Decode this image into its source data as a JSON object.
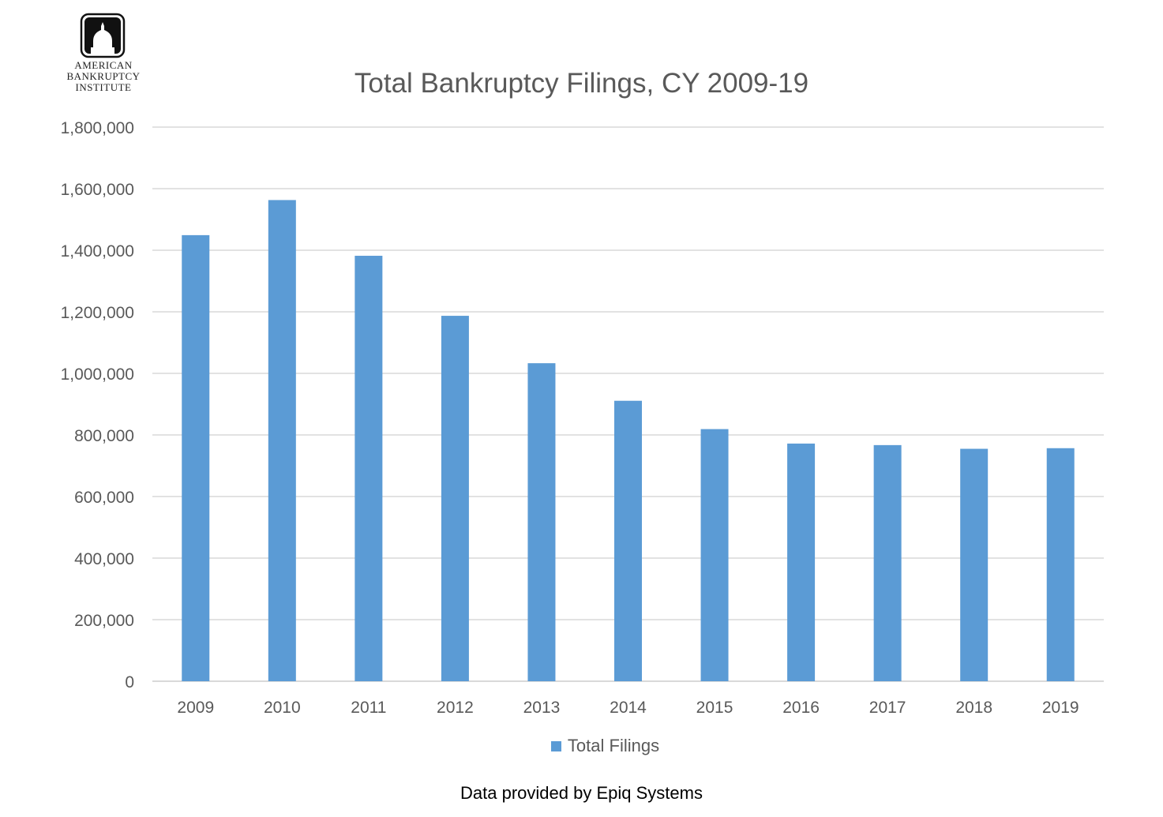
{
  "logo": {
    "lines": [
      "AMERICAN",
      "BANKRUPTCY",
      "INSTITUTE"
    ]
  },
  "footer": {
    "note": "Data provided by Epiq Systems"
  },
  "colors": {
    "bar": "#5B9BD5",
    "grid": "#D9D9D9",
    "text": "#595959"
  },
  "chart_data": {
    "type": "bar",
    "title": "Total Bankruptcy Filings, CY 2009-19",
    "xlabel": "",
    "ylabel": "",
    "categories": [
      "2009",
      "2010",
      "2011",
      "2012",
      "2013",
      "2014",
      "2015",
      "2016",
      "2017",
      "2018",
      "2019"
    ],
    "series": [
      {
        "name": "Total Filings",
        "values": [
          1449000,
          1563000,
          1382000,
          1187000,
          1033000,
          911000,
          819000,
          772000,
          767000,
          755000,
          757000
        ]
      }
    ],
    "ylim": [
      0,
      1800000
    ],
    "yticks": [
      "0",
      "200,000",
      "400,000",
      "600,000",
      "800,000",
      "1,000,000",
      "1,200,000",
      "1,400,000",
      "1,600,000",
      "1,800,000"
    ],
    "grid": true,
    "legend": "bottom"
  }
}
